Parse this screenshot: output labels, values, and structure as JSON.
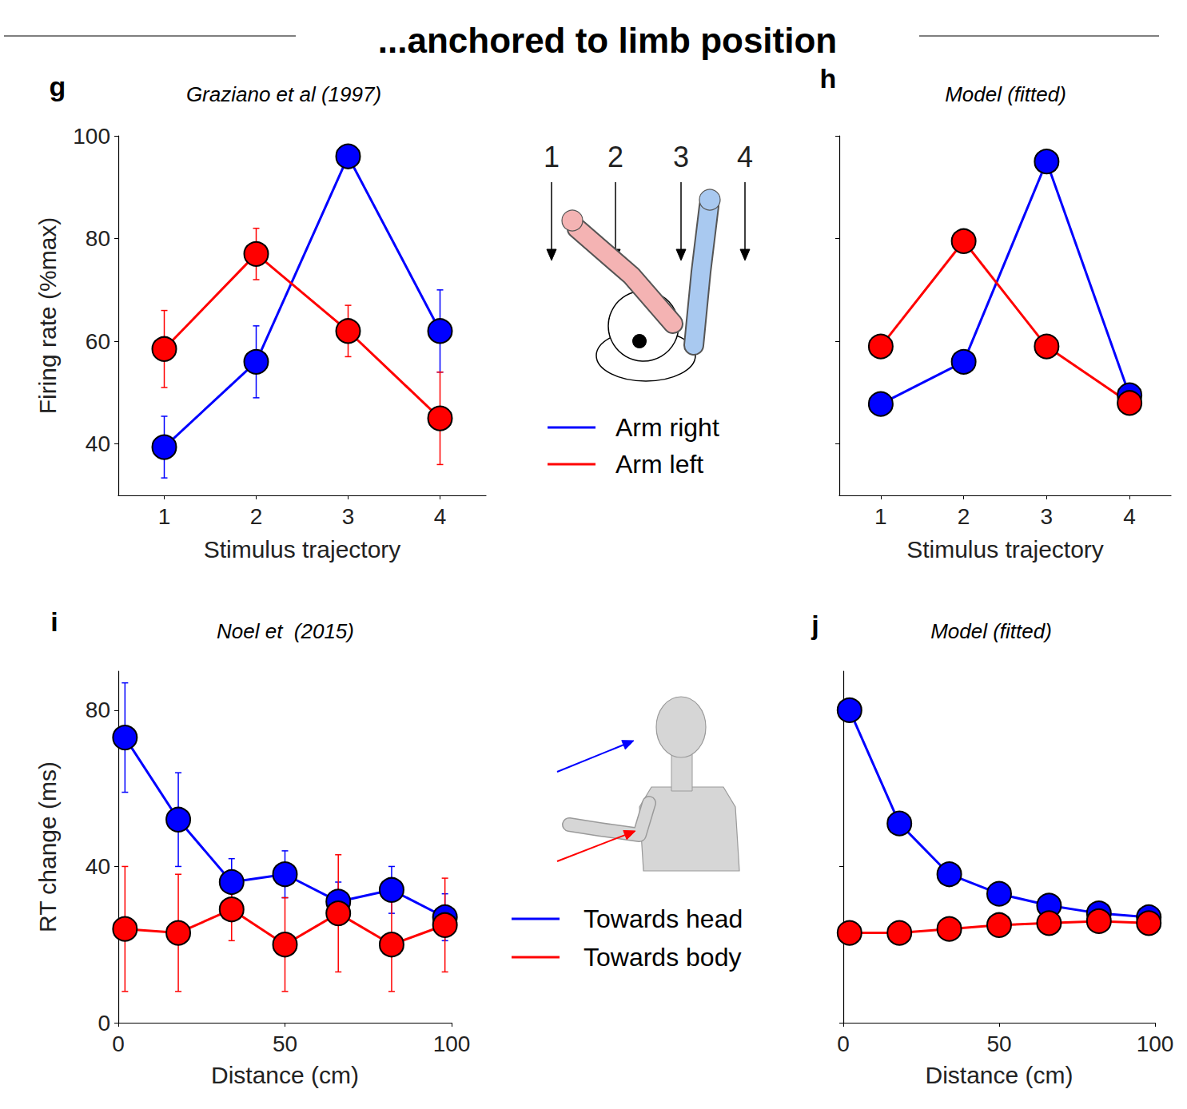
{
  "header": "...anchored to limb position",
  "chart_data": [
    {
      "panel": "g",
      "type": "line",
      "title": "Graziano et al (1997)",
      "x_label": "Stimulus trajectory",
      "y_label": "Firing rate (%max)",
      "categories": [
        "1",
        "2",
        "3",
        "4"
      ],
      "ylim": [
        30,
        100
      ],
      "yticks": [
        40,
        60,
        80,
        100
      ],
      "grid": false,
      "marker": "circle",
      "line_style": "solid",
      "series": [
        {
          "name": "Arm right",
          "color": "#0000ff",
          "values": [
            39.4,
            56,
            96,
            62
          ],
          "errors": [
            6,
            7,
            0,
            8
          ]
        },
        {
          "name": "Arm left",
          "color": "#ff0000",
          "values": [
            58.5,
            77,
            62,
            45
          ],
          "errors": [
            7.5,
            5,
            5,
            9
          ]
        }
      ]
    },
    {
      "panel": "h",
      "type": "line",
      "title": "Model (fitted)",
      "x_label": "Stimulus trajectory",
      "categories": [
        "1",
        "2",
        "3",
        "4"
      ],
      "ylim": [
        30,
        100
      ],
      "yticks": [
        40,
        60,
        80,
        100
      ],
      "grid": false,
      "tick_labels": "x",
      "marker": "circle",
      "line_style": "solid",
      "series": [
        {
          "name": "Arm right",
          "color": "#0000ff",
          "values": [
            47.8,
            56,
            95,
            49.5
          ]
        },
        {
          "name": "Arm left",
          "color": "#ff0000",
          "values": [
            59,
            79.5,
            59,
            48
          ]
        }
      ]
    },
    {
      "panel": "i",
      "type": "line",
      "title": "Noel et  (2015)",
      "x_label": "Distance (cm)",
      "y_label": "RT change (ms)",
      "x": [
        2,
        18,
        34,
        50,
        66,
        82,
        98
      ],
      "xlim": [
        0,
        100
      ],
      "xticks": [
        0,
        50,
        100
      ],
      "ylim": [
        0,
        90
      ],
      "yticks": [
        0,
        40,
        80
      ],
      "grid": false,
      "marker": "circle",
      "line_style": "solid",
      "series": [
        {
          "name": "Towards head",
          "color": "#0000ff",
          "values": [
            73,
            52,
            36,
            38,
            31,
            34,
            27
          ],
          "errors": [
            14,
            12,
            6,
            6,
            5,
            6,
            6
          ]
        },
        {
          "name": "Towards body",
          "color": "#ff0000",
          "values": [
            24,
            23,
            29,
            20,
            28,
            20,
            25
          ],
          "errors": [
            16,
            15,
            8,
            12,
            15,
            12,
            12
          ]
        }
      ]
    },
    {
      "panel": "j",
      "type": "line",
      "title": "Model (fitted)",
      "x_label": "Distance (cm)",
      "x": [
        2,
        18,
        34,
        50,
        66,
        82,
        98
      ],
      "xlim": [
        0,
        100
      ],
      "xticks": [
        0,
        50,
        100
      ],
      "ylim": [
        0,
        90
      ],
      "yticks": [
        0,
        40,
        80
      ],
      "grid": false,
      "tick_labels": "x",
      "marker": "circle",
      "line_style": "solid",
      "series": [
        {
          "name": "Towards head",
          "color": "#0000ff",
          "values": [
            80,
            51,
            38,
            33,
            30,
            28,
            27
          ]
        },
        {
          "name": "Towards body",
          "color": "#ff0000",
          "values": [
            23,
            23,
            24,
            25,
            25.5,
            26,
            25.5
          ]
        }
      ]
    }
  ]
}
